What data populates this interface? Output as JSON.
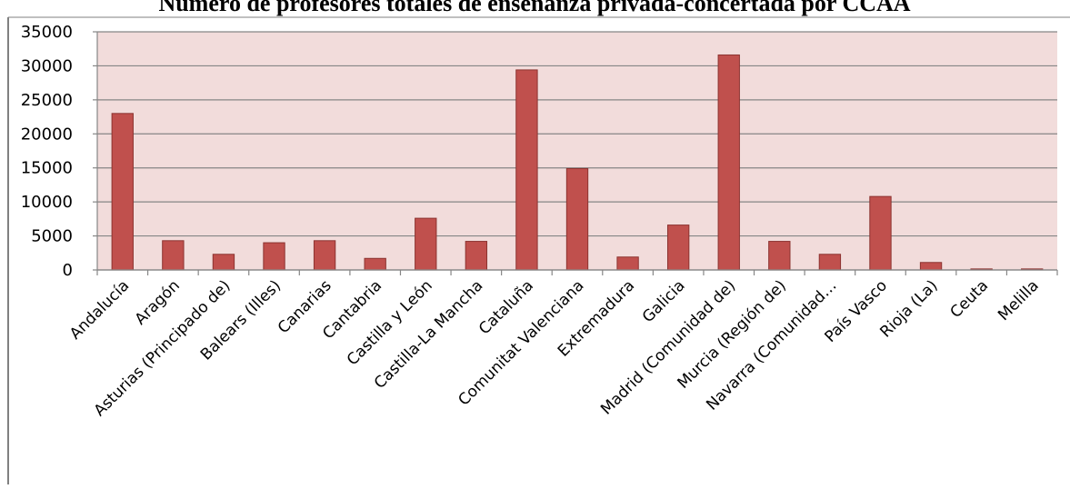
{
  "chart_data": {
    "type": "bar",
    "title": "Número de profesores totales de enseñanza privada-concertada por CCAA",
    "xlabel": "",
    "ylabel": "",
    "ylim": [
      0,
      35000
    ],
    "yticks": [
      0,
      5000,
      10000,
      15000,
      20000,
      25000,
      30000,
      35000
    ],
    "grid": true,
    "legend": "none",
    "colors": {
      "bar": "#c0504d",
      "bar_edge": "#8c3330",
      "plot_background": "#f2dcdb",
      "grid": "#868686",
      "frame": "#808080"
    },
    "categories": [
      "Andalucía",
      "Aragón",
      "Asturias (Principado de)",
      "Balears (Illes)",
      "Canarias",
      "Cantabria",
      "Castilla y León",
      "Castilla-La Mancha",
      "Cataluña",
      "Comunitat Valenciana",
      "Extremadura",
      "Galicia",
      "Madrid (Comunidad de)",
      "Murcia (Región de)",
      "Navarra (Comunidad…",
      "País Vasco",
      "Rioja (La)",
      "Ceuta",
      "Melilla"
    ],
    "values": [
      23000,
      4300,
      2300,
      4000,
      4300,
      1700,
      7600,
      4200,
      29400,
      14900,
      1900,
      6600,
      31600,
      4200,
      2300,
      10800,
      1100,
      150,
      150
    ]
  }
}
